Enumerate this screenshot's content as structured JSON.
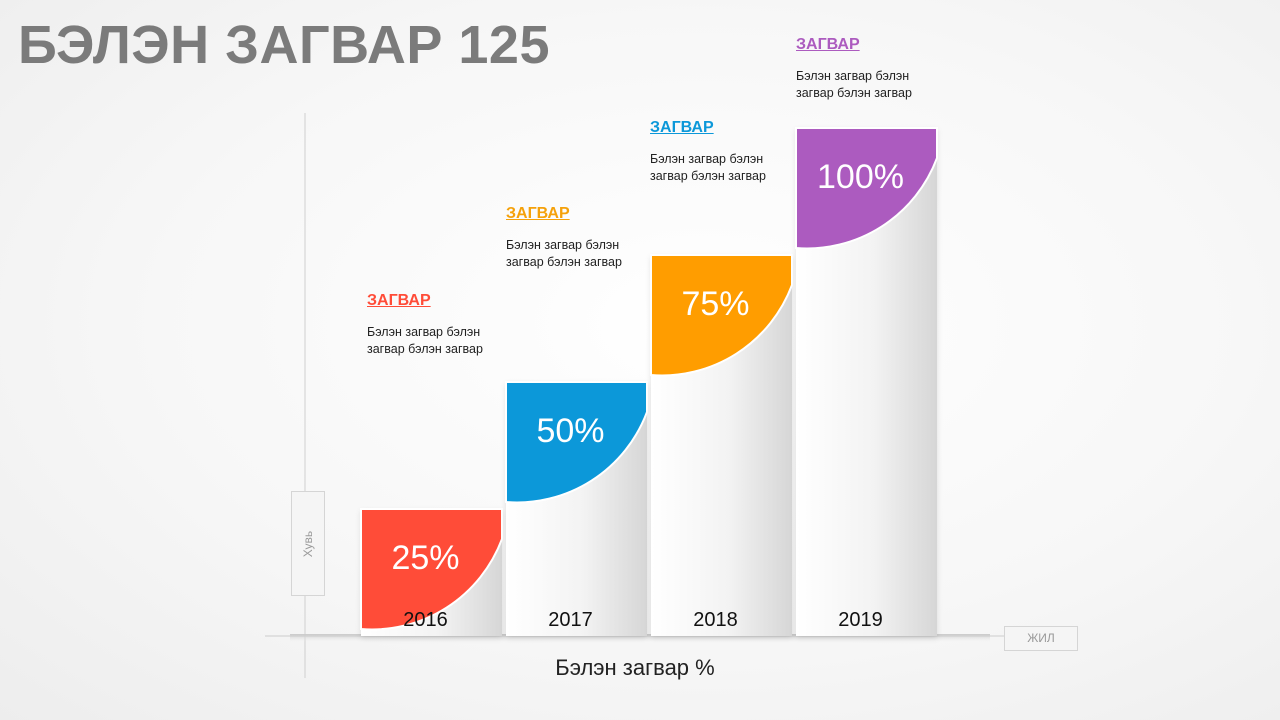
{
  "page_title": "БЭЛЭН ЗАГВАР 125",
  "chart_data": {
    "type": "bar",
    "categories": [
      "2016",
      "2017",
      "2018",
      "2019"
    ],
    "values": [
      25,
      50,
      75,
      100
    ],
    "value_labels": [
      "25%",
      "50%",
      "75%",
      "100%"
    ],
    "ylim": [
      0,
      100
    ],
    "ylabel": "Хувь",
    "xlabel": "ЖИЛ",
    "caption": "Бэлэн загвар %",
    "colors": [
      "#ff4c38",
      "#0c98d9",
      "#ff9d00",
      "#ac5bbf"
    ],
    "grid": false
  },
  "annotations": [
    {
      "heading": "ЗАГВАР",
      "text": "Бэлэн загвар бэлэн загвар бэлэн загвар",
      "color": "#ff4c38"
    },
    {
      "heading": "ЗАГВАР",
      "text": "Бэлэн загвар бэлэн загвар бэлэн загвар",
      "color": "#f5a10a"
    },
    {
      "heading": "ЗАГВАР",
      "text": "Бэлэн загвар бэлэн загвар бэлэн загвар",
      "color": "#0c98d9"
    },
    {
      "heading": "ЗАГВАР",
      "text": "Бэлэн загвар бэлэн загвар бэлэн загвар",
      "color": "#ac5bbf"
    }
  ]
}
